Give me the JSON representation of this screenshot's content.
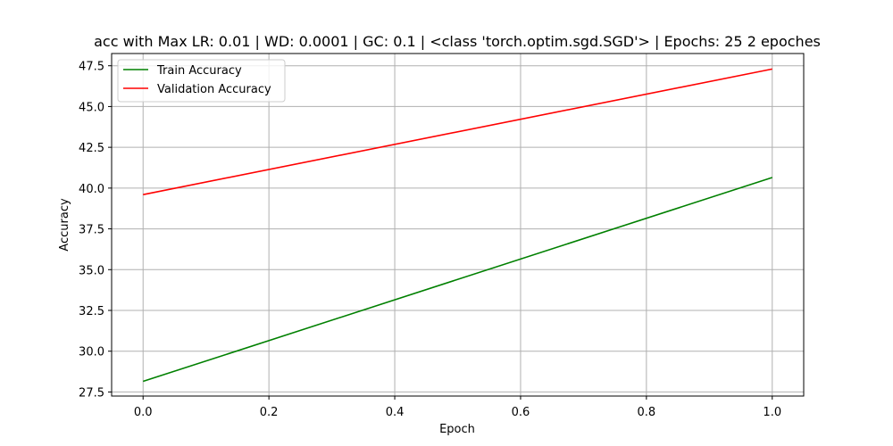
{
  "chart_data": {
    "type": "line",
    "title": "acc with Max LR: 0.01 | WD: 0.0001 | GC: 0.1 | <class 'torch.optim.sgd.SGD'> | Epochs: 25 2 epoches",
    "xlabel": "Epoch",
    "ylabel": "Accuracy",
    "xlim": [
      -0.05,
      1.05
    ],
    "ylim": [
      27.25,
      48.25
    ],
    "xticks": [
      0.0,
      0.2,
      0.4,
      0.6,
      0.8,
      1.0
    ],
    "xtick_labels": [
      "0.0",
      "0.2",
      "0.4",
      "0.6",
      "0.8",
      "1.0"
    ],
    "yticks": [
      27.5,
      30.0,
      32.5,
      35.0,
      37.5,
      40.0,
      42.5,
      45.0,
      47.5
    ],
    "ytick_labels": [
      "27.5",
      "30.0",
      "32.5",
      "35.0",
      "37.5",
      "40.0",
      "42.5",
      "45.0",
      "47.5"
    ],
    "grid": true,
    "legend_position": "top-left",
    "x": [
      0,
      1
    ],
    "series": [
      {
        "name": "Train Accuracy",
        "color": "#008000",
        "values": [
          28.15,
          40.65
        ]
      },
      {
        "name": "Validation Accuracy",
        "color": "#ff0000",
        "values": [
          39.6,
          47.3
        ]
      }
    ]
  }
}
